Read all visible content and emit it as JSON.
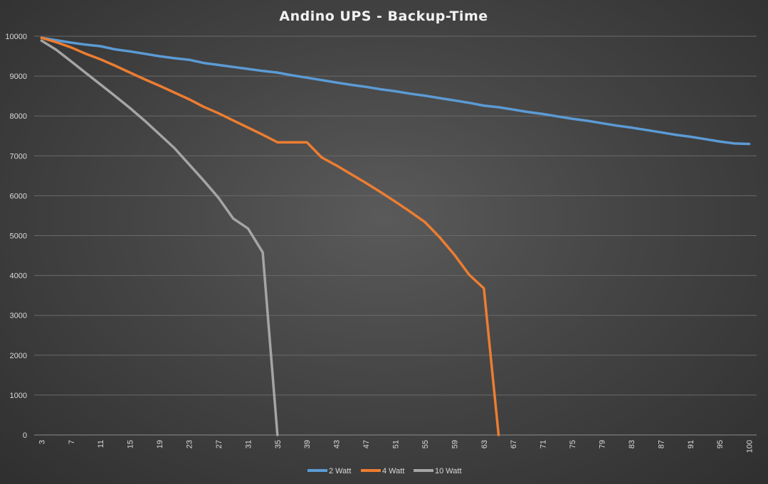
{
  "chart_data": {
    "type": "line",
    "title": "Andino UPS - Backup-Time",
    "xlabel": "",
    "ylabel": "",
    "ylim": [
      0,
      10000
    ],
    "yticks": [
      0,
      1000,
      2000,
      3000,
      4000,
      5000,
      6000,
      7000,
      8000,
      9000,
      10000
    ],
    "grid": true,
    "legend": "bottom",
    "x": [
      "3",
      "5",
      "7",
      "9",
      "11",
      "13",
      "15",
      "17",
      "19",
      "21",
      "23",
      "25",
      "27",
      "29",
      "31",
      "33",
      "35",
      "37",
      "39",
      "41",
      "43",
      "45",
      "47",
      "49",
      "51",
      "53",
      "55",
      "57",
      "59",
      "61",
      "63",
      "65",
      "67",
      "69",
      "71",
      "73",
      "75",
      "77",
      "79",
      "81",
      "83",
      "85",
      "87",
      "89",
      "91",
      "93",
      "95",
      "97",
      "100"
    ],
    "series": [
      {
        "name": "2 Watt",
        "color": "#5b9bd5",
        "values": [
          9960,
          9900,
          9840,
          9790,
          9750,
          9670,
          9620,
          9560,
          9500,
          9450,
          9410,
          9330,
          9280,
          9230,
          9180,
          9130,
          9090,
          9020,
          8960,
          8900,
          8840,
          8780,
          8730,
          8670,
          8620,
          8560,
          8510,
          8450,
          8390,
          8330,
          8260,
          8220,
          8160,
          8100,
          8050,
          7990,
          7930,
          7880,
          7820,
          7760,
          7710,
          7650,
          7590,
          7530,
          7480,
          7420,
          7360,
          7310,
          7300
        ]
      },
      {
        "name": "4 Watt",
        "color": "#ed7d31",
        "values": [
          9960,
          9850,
          9720,
          9560,
          9420,
          9260,
          9090,
          8920,
          8760,
          8590,
          8420,
          8230,
          8070,
          7890,
          7710,
          7530,
          7340,
          7340,
          7340,
          6960,
          6760,
          6540,
          6320,
          6090,
          5850,
          5600,
          5340,
          4960,
          4520,
          4020,
          3680,
          0,
          null,
          null,
          null,
          null,
          null,
          null,
          null,
          null,
          null,
          null,
          null,
          null,
          null,
          null,
          null,
          null,
          null
        ]
      },
      {
        "name": "10 Watt",
        "color": "#a5a5a5",
        "values": [
          9890,
          9660,
          9370,
          9080,
          8790,
          8500,
          8200,
          7880,
          7540,
          7200,
          6790,
          6380,
          5950,
          5430,
          5180,
          4580,
          0,
          null,
          null,
          null,
          null,
          null,
          null,
          null,
          null,
          null,
          null,
          null,
          null,
          null,
          null,
          null,
          null,
          null,
          null,
          null,
          null,
          null,
          null,
          null,
          null,
          null,
          null,
          null,
          null,
          null,
          null,
          null,
          null
        ]
      }
    ]
  }
}
